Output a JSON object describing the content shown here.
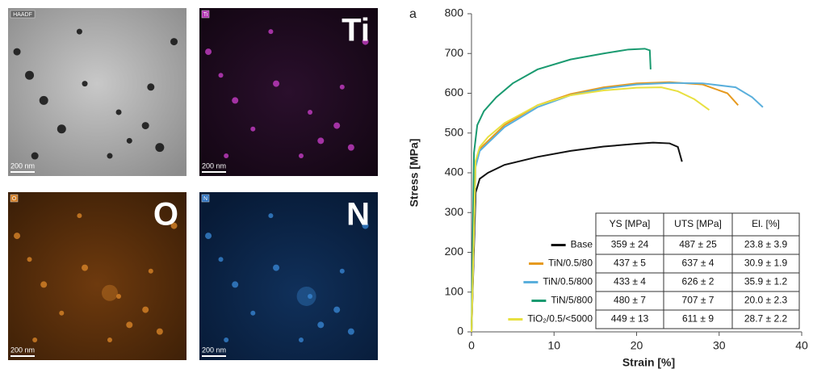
{
  "panels": [
    {
      "tag": "HAADF",
      "scale": "200 nm"
    },
    {
      "tag": "Ti",
      "label": "Ti",
      "scale": "200 nm"
    },
    {
      "tag": "O",
      "label": "O",
      "scale": "200 nm"
    },
    {
      "tag": "N",
      "label": "N",
      "scale": "200 nm"
    }
  ],
  "chart_data": {
    "type": "line",
    "panel_label": "a",
    "xlabel": "Strain [%]",
    "ylabel": "Stress [MPa]",
    "xlim": [
      0,
      40
    ],
    "xticks": [
      0,
      10,
      20,
      30,
      40
    ],
    "ylim": [
      0,
      800
    ],
    "yticks": [
      0,
      100,
      200,
      300,
      400,
      500,
      600,
      700,
      800
    ],
    "series": [
      {
        "name": "Base",
        "color": "#111111",
        "x": [
          0,
          0.5,
          1,
          2,
          4,
          8,
          12,
          16,
          20,
          22,
          24,
          25,
          25.5
        ],
        "values": [
          0,
          350,
          385,
          400,
          420,
          440,
          455,
          466,
          473,
          476,
          474,
          465,
          428
        ]
      },
      {
        "name": "TiN/0.5/80",
        "color": "#e69a1f",
        "x": [
          0,
          0.5,
          1,
          2,
          4,
          8,
          12,
          16,
          20,
          24,
          28,
          31,
          32.3
        ],
        "values": [
          0,
          420,
          460,
          480,
          520,
          570,
          598,
          615,
          625,
          628,
          622,
          600,
          570
        ]
      },
      {
        "name": "TiN/0.5/800",
        "color": "#5aafdc",
        "x": [
          0,
          0.5,
          1,
          2,
          4,
          8,
          12,
          16,
          20,
          24,
          28,
          32,
          34,
          35.3
        ],
        "values": [
          0,
          415,
          455,
          475,
          515,
          565,
          595,
          612,
          622,
          626,
          625,
          615,
          590,
          565
        ]
      },
      {
        "name": "TiN/5/800",
        "color": "#1a9a70",
        "x": [
          0,
          0.3,
          0.7,
          1.5,
          3,
          5,
          8,
          12,
          16,
          19,
          21,
          21.6,
          21.7
        ],
        "values": [
          0,
          450,
          520,
          555,
          590,
          625,
          660,
          685,
          700,
          710,
          712,
          708,
          660
        ]
      },
      {
        "name": "TiO₂/0.5/<5000",
        "color": "#e8e040",
        "x": [
          0,
          0.5,
          1,
          2,
          4,
          8,
          12,
          16,
          20,
          23,
          25,
          27,
          28.8
        ],
        "values": [
          0,
          430,
          465,
          490,
          525,
          570,
          595,
          607,
          614,
          615,
          605,
          585,
          558
        ]
      }
    ],
    "table": {
      "columns": [
        "YS [MPa]",
        "UTS [MPa]",
        "El. [%]"
      ],
      "rows": [
        [
          "359 ± 24",
          "487 ± 25",
          "23.8 ± 3.9"
        ],
        [
          "437 ± 5",
          "637 ± 4",
          "30.9 ± 1.9"
        ],
        [
          "433 ± 4",
          "626 ± 2",
          "35.9 ± 1.2"
        ],
        [
          "480 ± 7",
          "707 ± 7",
          "20.0 ± 2.3"
        ],
        [
          "449 ± 13",
          "611 ± 9",
          "28.7 ± 2.2"
        ]
      ]
    }
  }
}
